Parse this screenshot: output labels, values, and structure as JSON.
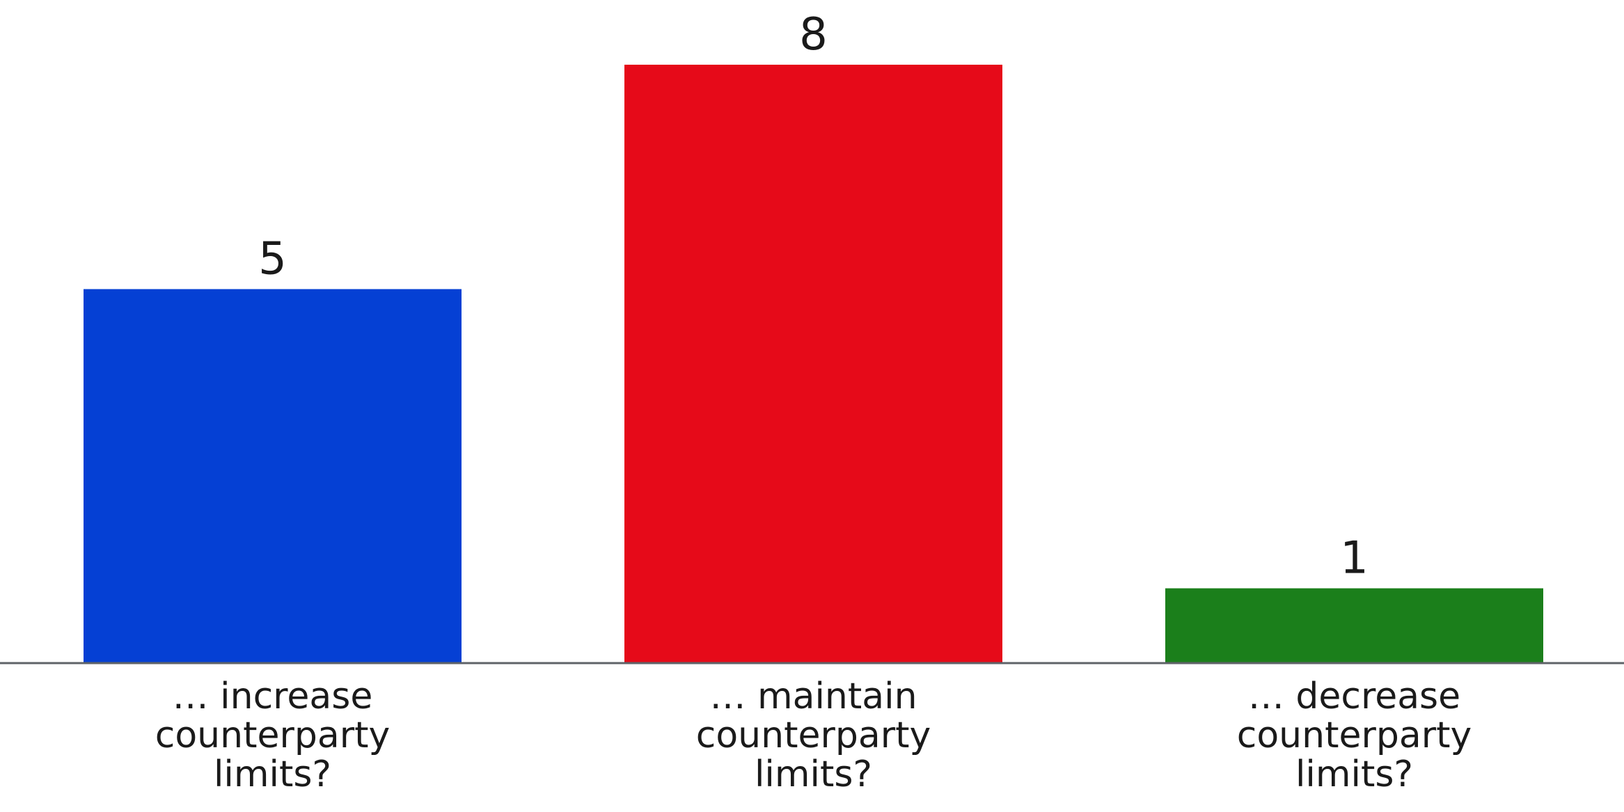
{
  "chart_data": {
    "type": "bar",
    "categories": [
      [
        "… increase",
        "counterparty",
        "limits?"
      ],
      [
        "… maintain",
        "counterparty",
        "limits?"
      ],
      [
        "… decrease",
        "counterparty",
        "limits?"
      ]
    ],
    "values": [
      5,
      8,
      1
    ],
    "colors": [
      "#0540D4",
      "#E60A19",
      "#1B7F1B"
    ],
    "axis_color": "#5f6368",
    "ylim": [
      0,
      8
    ],
    "grid": false,
    "title": "",
    "xlabel": "",
    "ylabel": ""
  }
}
